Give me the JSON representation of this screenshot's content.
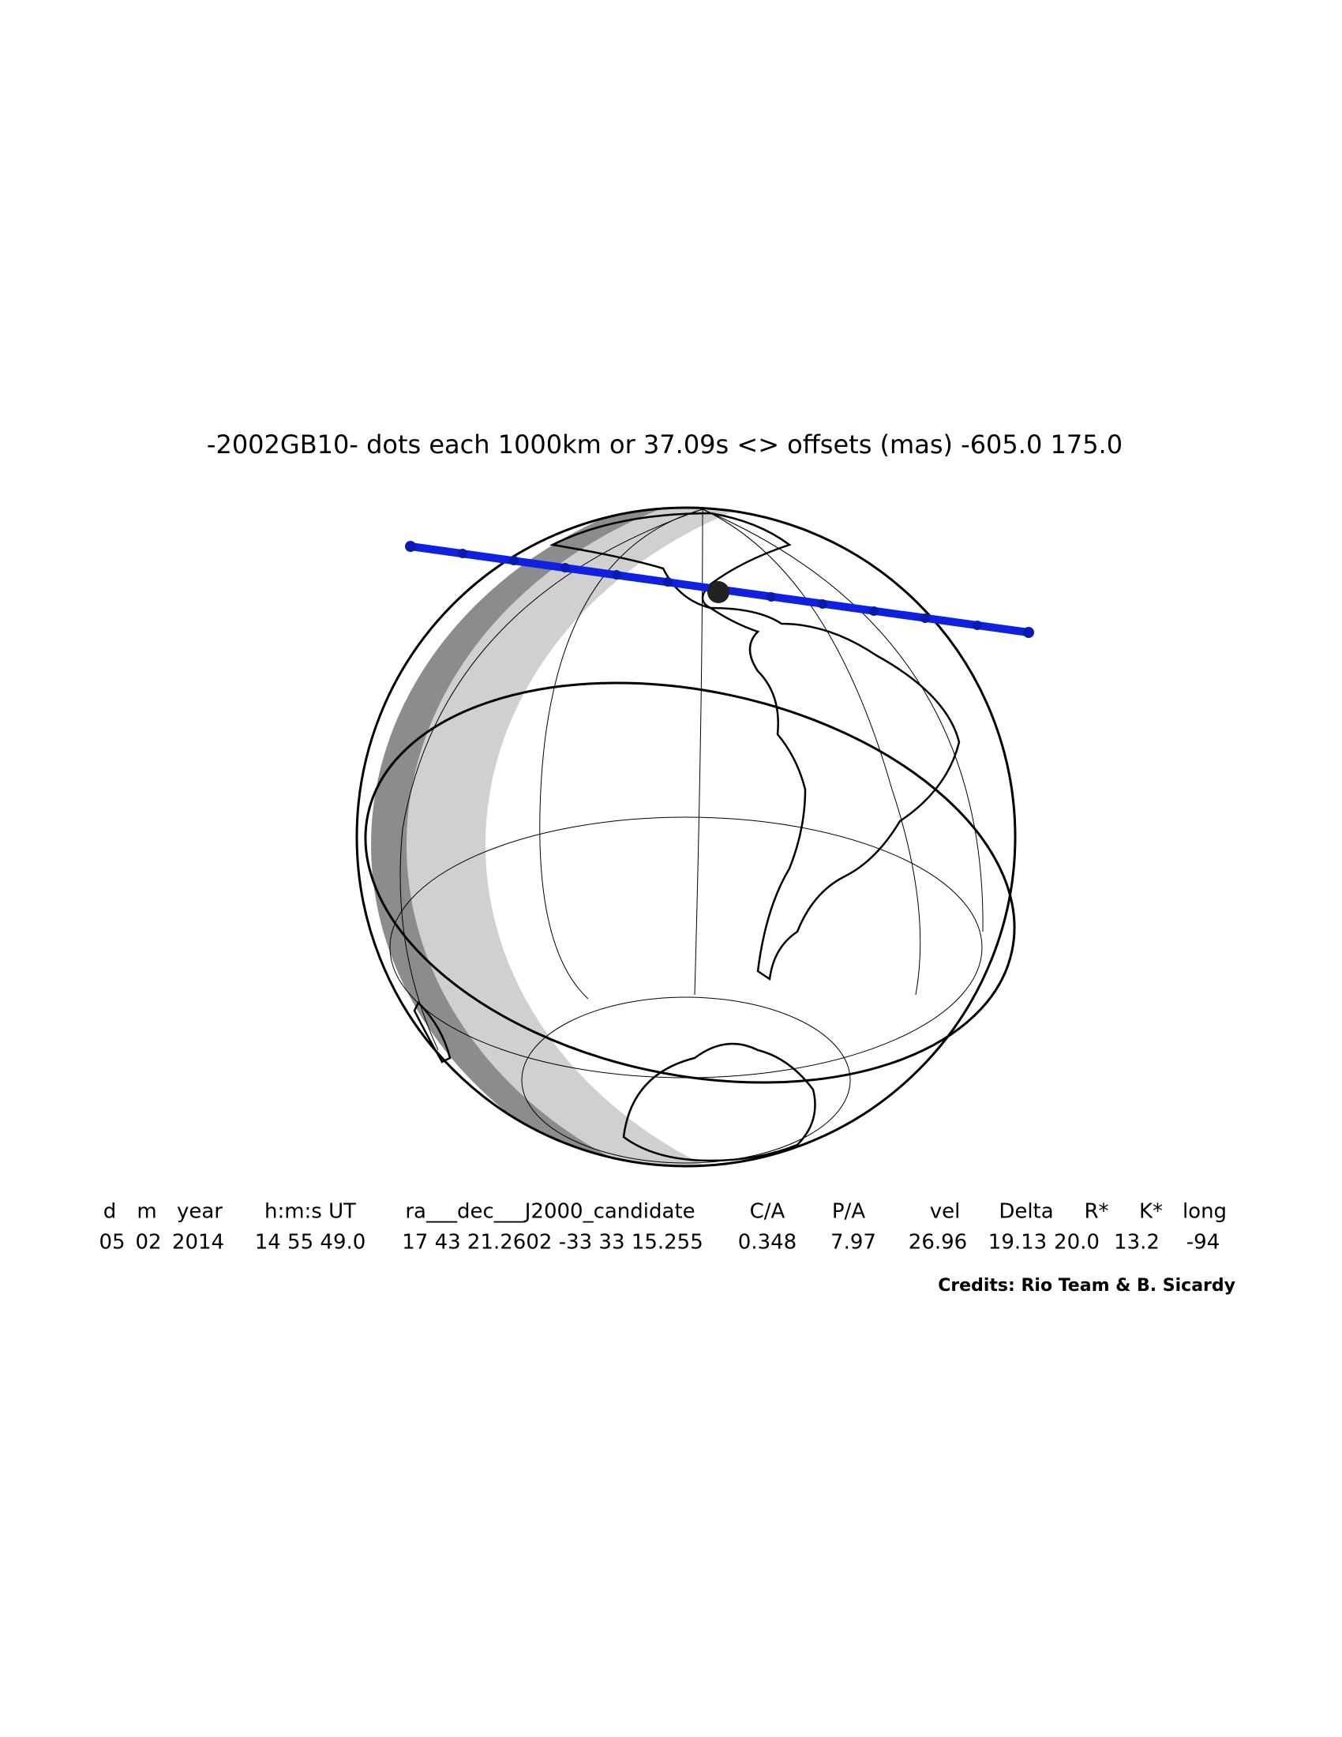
{
  "title": "-2002GB10- dots each 1000km or 37.09s <> offsets (mas) -605.0   175.0",
  "table": {
    "header": [
      "d",
      "m",
      "year",
      "h:m:s UT",
      "ra___dec___J2000_candidate",
      "C/A",
      "P/A",
      "vel",
      "Delta",
      "R*",
      "K*",
      "long"
    ],
    "rows": [
      [
        "05",
        "02",
        "2014",
        "14 55 49.0",
        "17 43 21.2602 -33 33 15.255",
        "0.348",
        "7.97",
        "26.96",
        "19.13",
        "20.0",
        "13.2",
        "-94"
      ]
    ]
  },
  "credits": "Credits: Rio Team & B. Sicardy"
}
